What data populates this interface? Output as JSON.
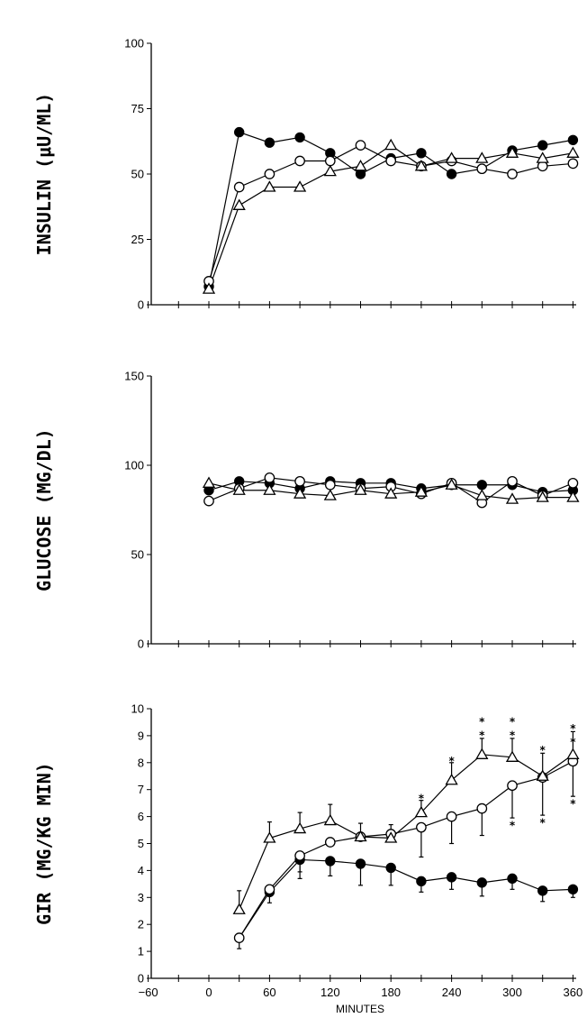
{
  "chart_data": [
    {
      "type": "line",
      "ylabel": "INSULIN (μU/ML)",
      "xlabel": "",
      "ylim": [
        0,
        100
      ],
      "xlim": [
        -60,
        360
      ],
      "yticks": [
        "0",
        "25",
        "50",
        "75",
        "100"
      ],
      "x": [
        0,
        30,
        60,
        90,
        120,
        150,
        180,
        210,
        240,
        270,
        300,
        330,
        360
      ],
      "series": [
        {
          "marker": "filled-circle",
          "values": [
            7,
            66,
            62,
            64,
            58,
            50,
            56,
            58,
            50,
            52,
            59,
            61,
            63
          ]
        },
        {
          "marker": "open-circle",
          "values": [
            9,
            45,
            50,
            55,
            55,
            61,
            55,
            53,
            55,
            52,
            50,
            53,
            54
          ]
        },
        {
          "marker": "open-triangle",
          "values": [
            6,
            38,
            45,
            45,
            51,
            53,
            61,
            53,
            56,
            56,
            58,
            56,
            58
          ]
        }
      ]
    },
    {
      "type": "line",
      "ylabel": "GLUCOSE (MG/DL)",
      "xlabel": "",
      "ylim": [
        0,
        150
      ],
      "xlim": [
        -60,
        360
      ],
      "yticks": [
        "0",
        "50",
        "100",
        "150"
      ],
      "x": [
        0,
        30,
        60,
        90,
        120,
        150,
        180,
        210,
        240,
        270,
        300,
        330,
        360
      ],
      "series": [
        {
          "marker": "filled-circle",
          "values": [
            86,
            91,
            90,
            87,
            91,
            90,
            90,
            87,
            89,
            89,
            89,
            85,
            86
          ]
        },
        {
          "marker": "open-circle",
          "values": [
            80,
            87,
            93,
            91,
            89,
            87,
            88,
            84,
            90,
            79,
            91,
            83,
            90
          ]
        },
        {
          "marker": "open-triangle",
          "values": [
            90,
            86,
            86,
            84,
            83,
            86,
            84,
            85,
            89,
            83,
            81,
            82,
            82
          ]
        }
      ]
    },
    {
      "type": "line",
      "ylabel": "GIR (MG/KG MIN)",
      "xlabel": "MINUTES",
      "ylim": [
        0,
        10
      ],
      "xlim": [
        -60,
        360
      ],
      "yticks": [
        "0",
        "1",
        "2",
        "3",
        "4",
        "5",
        "6",
        "7",
        "8",
        "9",
        "10"
      ],
      "xticks": [
        "−60",
        "0",
        "60",
        "120",
        "180",
        "240",
        "300",
        "360"
      ],
      "x": [
        30,
        60,
        90,
        120,
        150,
        180,
        210,
        240,
        270,
        300,
        330,
        360
      ],
      "series": [
        {
          "marker": "filled-circle",
          "values": [
            1.5,
            3.2,
            4.4,
            4.35,
            4.25,
            4.1,
            3.6,
            3.75,
            3.55,
            3.7,
            3.25,
            3.3
          ],
          "err_low": [
            0.4,
            0.4,
            0.7,
            0.55,
            0.8,
            0.65,
            0.4,
            0.45,
            0.5,
            0.4,
            0.4,
            0.3
          ],
          "err_high": [
            0,
            0,
            0,
            0,
            0,
            0,
            0,
            0,
            0,
            0,
            0,
            0
          ]
        },
        {
          "marker": "open-circle",
          "values": [
            1.5,
            3.3,
            4.55,
            5.05,
            5.25,
            5.35,
            5.6,
            6.0,
            6.3,
            7.15,
            7.45,
            8.05
          ],
          "err_low": [
            0,
            0,
            0.6,
            0,
            0,
            0,
            1.1,
            1.0,
            1.0,
            1.2,
            1.4,
            1.3
          ],
          "err_high": [
            0,
            0,
            0,
            0,
            0,
            0,
            0,
            0,
            0,
            0,
            0,
            0
          ]
        },
        {
          "marker": "open-triangle",
          "values": [
            2.55,
            5.2,
            5.55,
            5.85,
            5.25,
            5.2,
            6.15,
            7.35,
            8.3,
            8.2,
            7.5,
            8.3
          ],
          "err_low": [
            0,
            0,
            0,
            0,
            0,
            0,
            0,
            0,
            0,
            0,
            0,
            0
          ],
          "err_high": [
            0.7,
            0.6,
            0.6,
            0.6,
            0.5,
            0.5,
            0.45,
            0.65,
            0.6,
            0.7,
            0.85,
            0.85
          ]
        }
      ],
      "annotations": [
        {
          "x": 210,
          "y": 6.7,
          "text": "*"
        },
        {
          "x": 240,
          "y": 8.1,
          "text": "*"
        },
        {
          "x": 270,
          "y": 9.05,
          "text": "*"
        },
        {
          "x": 270,
          "y": 9.55,
          "text": "*"
        },
        {
          "x": 300,
          "y": 9.05,
          "text": "*"
        },
        {
          "x": 300,
          "y": 9.55,
          "text": "*"
        },
        {
          "x": 330,
          "y": 8.5,
          "text": "*"
        },
        {
          "x": 360,
          "y": 9.3,
          "text": "*"
        },
        {
          "x": 360,
          "y": 8.8,
          "text": "*"
        },
        {
          "x": 300,
          "y": 5.7,
          "text": "*"
        },
        {
          "x": 330,
          "y": 5.8,
          "text": "*"
        },
        {
          "x": 360,
          "y": 6.5,
          "text": "*"
        }
      ]
    }
  ]
}
